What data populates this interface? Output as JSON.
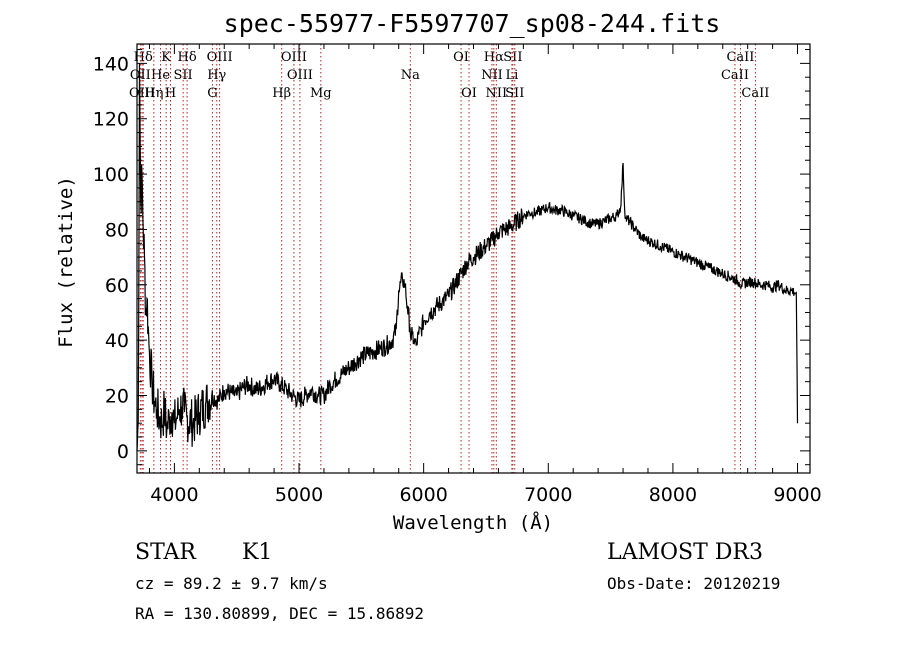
{
  "chart_data": {
    "type": "line",
    "title": "spec-55977-F5597707_sp08-244.fits",
    "xlabel": "Wavelength (Å)",
    "ylabel": "Flux (relative)",
    "xlim": [
      3700,
      9100
    ],
    "ylim": [
      -8,
      147
    ],
    "xticks": [
      4000,
      5000,
      6000,
      7000,
      8000,
      9000
    ],
    "yticks": [
      0,
      20,
      40,
      60,
      80,
      100,
      120,
      140
    ],
    "series": [
      {
        "name": "flux",
        "x": [
          3700,
          3710,
          3720,
          3730,
          3740,
          3750,
          3760,
          3770,
          3780,
          3790,
          3800,
          3820,
          3840,
          3860,
          3880,
          3900,
          3920,
          3940,
          3960,
          3980,
          4000,
          4020,
          4040,
          4060,
          4080,
          4100,
          4150,
          4200,
          4250,
          4300,
          4350,
          4400,
          4450,
          4500,
          4550,
          4600,
          4650,
          4700,
          4750,
          4800,
          4850,
          4900,
          4950,
          5000,
          5050,
          5100,
          5150,
          5200,
          5250,
          5300,
          5350,
          5400,
          5450,
          5500,
          5550,
          5600,
          5650,
          5700,
          5750,
          5780,
          5800,
          5830,
          5850,
          5870,
          5890,
          5900,
          5910,
          5920,
          5940,
          5960,
          5980,
          6000,
          6050,
          6100,
          6150,
          6200,
          6250,
          6300,
          6350,
          6400,
          6450,
          6500,
          6550,
          6600,
          6650,
          6700,
          6750,
          6800,
          6850,
          6900,
          6950,
          7000,
          7050,
          7100,
          7150,
          7200,
          7250,
          7300,
          7350,
          7400,
          7450,
          7500,
          7550,
          7580,
          7590,
          7600,
          7610,
          7620,
          7650,
          7700,
          7750,
          7800,
          7850,
          7900,
          7950,
          8000,
          8050,
          8100,
          8150,
          8200,
          8250,
          8300,
          8350,
          8400,
          8450,
          8500,
          8530,
          8550,
          8600,
          8650,
          8700,
          8750,
          8800,
          8850,
          8900,
          8950,
          8990,
          9000
        ],
        "y": [
          0,
          10,
          140,
          90,
          100,
          80,
          70,
          50,
          55,
          45,
          35,
          25,
          18,
          15,
          12,
          10,
          15,
          8,
          12,
          14,
          10,
          12,
          15,
          16,
          14,
          12,
          10,
          14,
          17,
          20,
          18,
          22,
          21,
          20,
          23,
          24,
          22,
          23,
          25,
          26,
          24,
          22,
          20,
          18,
          20,
          22,
          20,
          20,
          24,
          26,
          28,
          30,
          32,
          34,
          35,
          36,
          37,
          38,
          40,
          44,
          58,
          62,
          60,
          52,
          45,
          40,
          42,
          40,
          38,
          42,
          44,
          47,
          50,
          52,
          54,
          56,
          60,
          64,
          68,
          70,
          72,
          74,
          76,
          79,
          80,
          81,
          83,
          85,
          86,
          86,
          87,
          88,
          87,
          87,
          86,
          85,
          84,
          83,
          82,
          82,
          83,
          84,
          85,
          88,
          95,
          104,
          90,
          84,
          83,
          80,
          77,
          76,
          75,
          74,
          73,
          72,
          71,
          70,
          69,
          68,
          67,
          66,
          65,
          64,
          63,
          62,
          61,
          60,
          61,
          61,
          60,
          60,
          59,
          60,
          58,
          58,
          57,
          10
        ]
      }
    ],
    "line_markers": [
      {
        "label": "Hδ",
        "wavelength": 3750,
        "row": 1
      },
      {
        "label": "K",
        "wavelength": 3934,
        "row": 1
      },
      {
        "label": "Hδ",
        "wavelength": 4102,
        "row": 1
      },
      {
        "label": "OIII",
        "wavelength": 4363,
        "row": 1
      },
      {
        "label": "OIII",
        "wavelength": 4959,
        "row": 1
      },
      {
        "label": "OI",
        "wavelength": 6300,
        "row": 1
      },
      {
        "label": "Hα",
        "wavelength": 6563,
        "row": 1
      },
      {
        "label": "SII",
        "wavelength": 6716,
        "row": 1
      },
      {
        "label": "CaII",
        "wavelength": 8542,
        "row": 1
      },
      {
        "label": "OII",
        "wavelength": 3727,
        "row": 2
      },
      {
        "label": "He",
        "wavelength": 3889,
        "row": 2
      },
      {
        "label": "SII",
        "wavelength": 4070,
        "row": 2
      },
      {
        "label": "Hγ",
        "wavelength": 4340,
        "row": 2
      },
      {
        "label": "OIII",
        "wavelength": 5007,
        "row": 2
      },
      {
        "label": "Na",
        "wavelength": 5893,
        "row": 2
      },
      {
        "label": "NII",
        "wavelength": 6548,
        "row": 2
      },
      {
        "label": "Li",
        "wavelength": 6708,
        "row": 2
      },
      {
        "label": "CaII",
        "wavelength": 8498,
        "row": 2
      },
      {
        "label": "OIII",
        "wavelength": 3740,
        "row": 3
      },
      {
        "label": "Hη",
        "wavelength": 3835,
        "row": 3
      },
      {
        "label": "H",
        "wavelength": 3969,
        "row": 3
      },
      {
        "label": "G",
        "wavelength": 4305,
        "row": 3
      },
      {
        "label": "Hβ",
        "wavelength": 4861,
        "row": 3
      },
      {
        "label": "Mg",
        "wavelength": 5175,
        "row": 3
      },
      {
        "label": "OI",
        "wavelength": 6364,
        "row": 3
      },
      {
        "label": "NII",
        "wavelength": 6583,
        "row": 3
      },
      {
        "label": "SII",
        "wavelength": 6731,
        "row": 3
      },
      {
        "label": "CaII",
        "wavelength": 8662,
        "row": 3
      }
    ]
  },
  "info": {
    "object_class": "STAR",
    "subclass": "K1",
    "survey": "LAMOST DR3",
    "cz": "cz = 89.2 ± 9.7 km/s",
    "obs_date": "Obs-Date: 20120219",
    "coords": "RA = 130.80899, DEC =  15.86892"
  },
  "colors": {
    "spectrum": "#000000",
    "marker_line": "#b22222"
  }
}
